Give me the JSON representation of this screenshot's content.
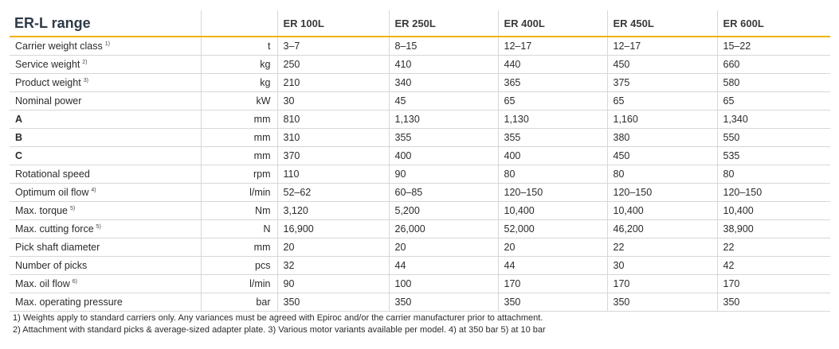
{
  "table": {
    "title": "ER-L range",
    "models": [
      "ER 100L",
      "ER 250L",
      "ER 400L",
      "ER 450L",
      "ER 600L"
    ],
    "rows": [
      {
        "label": "Carrier weight class",
        "note": "1)",
        "unit": "t",
        "bold": false,
        "values": [
          "3–7",
          "8–15",
          "12–17",
          "12–17",
          "15–22"
        ]
      },
      {
        "label": "Service weight",
        "note": "2)",
        "unit": "kg",
        "bold": false,
        "values": [
          "250",
          "410",
          "440",
          "450",
          "660"
        ]
      },
      {
        "label": "Product weight",
        "note": "3)",
        "unit": "kg",
        "bold": false,
        "values": [
          "210",
          "340",
          "365",
          "375",
          "580"
        ]
      },
      {
        "label": "Nominal power",
        "note": "",
        "unit": "kW",
        "bold": false,
        "values": [
          "30",
          "45",
          "65",
          "65",
          "65"
        ]
      },
      {
        "label": "A",
        "note": "",
        "unit": "mm",
        "bold": true,
        "values": [
          "810",
          "1,130",
          "1,130",
          "1,160",
          "1,340"
        ]
      },
      {
        "label": "B",
        "note": "",
        "unit": "mm",
        "bold": true,
        "values": [
          "310",
          "355",
          "355",
          "380",
          "550"
        ]
      },
      {
        "label": "C",
        "note": "",
        "unit": "mm",
        "bold": true,
        "values": [
          "370",
          "400",
          "400",
          "450",
          "535"
        ]
      },
      {
        "label": "Rotational speed",
        "note": "",
        "unit": "rpm",
        "bold": false,
        "values": [
          "110",
          "90",
          "80",
          "80",
          "80"
        ]
      },
      {
        "label": "Optimum oil flow",
        "note": "4)",
        "unit": "l/min",
        "bold": false,
        "values": [
          "52–62",
          "60–85",
          "120–150",
          "120–150",
          "120–150"
        ]
      },
      {
        "label": "Max. torque",
        "note": "5)",
        "unit": "Nm",
        "bold": false,
        "values": [
          "3,120",
          "5,200",
          "10,400",
          "10,400",
          "10,400"
        ]
      },
      {
        "label": "Max. cutting force",
        "note": "5)",
        "unit": "N",
        "bold": false,
        "values": [
          "16,900",
          "26,000",
          "52,000",
          "46,200",
          "38,900"
        ]
      },
      {
        "label": "Pick shaft diameter",
        "note": "",
        "unit": "mm",
        "bold": false,
        "values": [
          "20",
          "20",
          "20",
          "22",
          "22"
        ]
      },
      {
        "label": "Number of picks",
        "note": "",
        "unit": "pcs",
        "bold": false,
        "values": [
          "32",
          "44",
          "44",
          "30",
          "42"
        ]
      },
      {
        "label": "Max. oil flow",
        "note": "6)",
        "unit": "l/min",
        "bold": false,
        "values": [
          "90",
          "100",
          "170",
          "170",
          "170"
        ]
      },
      {
        "label": "Max. operating pressure",
        "note": "",
        "unit": "bar",
        "bold": false,
        "values": [
          "350",
          "350",
          "350",
          "350",
          "350"
        ]
      }
    ]
  },
  "footnotes": [
    "1) Weights apply to standard carriers only. Any variances must be agreed with Epiroc and/or the carrier manufacturer prior to attachment.",
    "2) Attachment with standard picks & average-sized adapter plate.  3) Various motor variants available per model.  4) at 350 bar  5) at 10 bar"
  ],
  "colors": {
    "header_underline": "#f2b200",
    "title_text": "#2e3a46",
    "grid_lines": "#d7d7d7"
  }
}
